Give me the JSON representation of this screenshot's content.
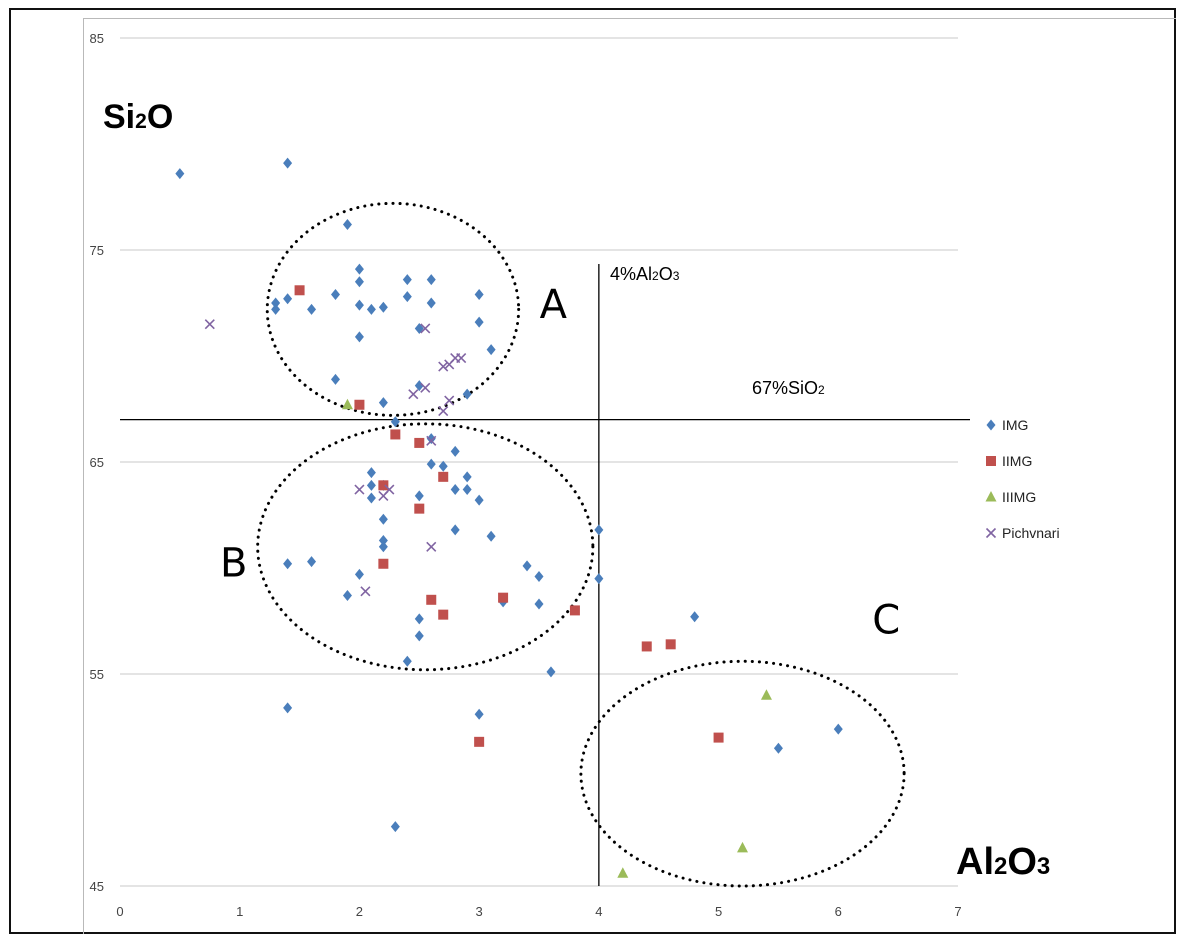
{
  "chart_data": {
    "type": "scatter",
    "xlim": [
      0,
      7
    ],
    "ylim": [
      45,
      85
    ],
    "x_ticks": [
      "0",
      "1",
      "2",
      "3",
      "4",
      "5",
      "6",
      "7"
    ],
    "y_ticks": [
      "45",
      "55",
      "65",
      "75",
      "85"
    ],
    "grid": "horizontal",
    "legend_position": "right",
    "y_axis_label": {
      "main": "Si",
      "sub": "2",
      "tail": "O"
    },
    "x_axis_label": {
      "a": "Al",
      "sub1": "2",
      "b": "O",
      "sub2": "3"
    },
    "reference_lines": {
      "vertical": {
        "x": 4,
        "label": {
          "a": "4%Al",
          "sub1": "2",
          "b": "O",
          "sub2": "3"
        }
      },
      "horizontal": {
        "y": 67,
        "label": {
          "a": "67%SiO",
          "sub": "2"
        }
      }
    },
    "regions": [
      {
        "label": "A",
        "cx": 2.28,
        "cy": 72.2,
        "rx": 1.05,
        "ry": 5.0
      },
      {
        "label": "B",
        "cx": 2.55,
        "cy": 61.0,
        "rx": 1.4,
        "ry": 5.8
      },
      {
        "label": "C",
        "cx": 5.2,
        "cy": 50.3,
        "rx": 1.35,
        "ry": 5.3
      }
    ],
    "region_label_positions": [
      {
        "label": "A",
        "x": 3.62,
        "y": 71.8
      },
      {
        "label": "B",
        "x": 0.95,
        "y": 59.6
      },
      {
        "label": "C",
        "x": 6.4,
        "y": 56.9
      }
    ],
    "series": [
      {
        "name": "IMG",
        "marker": "diamond",
        "color": "#4a7ebb",
        "points": [
          [
            0.5,
            78.6
          ],
          [
            1.4,
            79.1
          ],
          [
            1.9,
            76.2
          ],
          [
            2.0,
            74.1
          ],
          [
            2.0,
            73.5
          ],
          [
            2.4,
            73.6
          ],
          [
            2.6,
            73.6
          ],
          [
            1.3,
            72.5
          ],
          [
            1.4,
            72.7
          ],
          [
            1.3,
            72.2
          ],
          [
            1.6,
            72.2
          ],
          [
            1.8,
            72.9
          ],
          [
            2.0,
            72.4
          ],
          [
            2.1,
            72.2
          ],
          [
            2.2,
            72.3
          ],
          [
            2.4,
            72.8
          ],
          [
            2.6,
            72.5
          ],
          [
            3.0,
            72.9
          ],
          [
            2.5,
            71.3
          ],
          [
            3.0,
            71.6
          ],
          [
            2.0,
            70.9
          ],
          [
            3.1,
            70.3
          ],
          [
            1.8,
            68.9
          ],
          [
            2.5,
            68.6
          ],
          [
            2.9,
            68.2
          ],
          [
            2.2,
            67.8
          ],
          [
            2.3,
            66.9
          ],
          [
            2.6,
            66.1
          ],
          [
            2.8,
            65.5
          ],
          [
            2.6,
            64.9
          ],
          [
            2.7,
            64.8
          ],
          [
            2.9,
            64.3
          ],
          [
            2.1,
            64.5
          ],
          [
            2.1,
            63.9
          ],
          [
            2.2,
            63.9
          ],
          [
            2.1,
            63.3
          ],
          [
            2.5,
            63.4
          ],
          [
            2.8,
            63.7
          ],
          [
            2.9,
            63.7
          ],
          [
            3.0,
            63.2
          ],
          [
            2.2,
            62.3
          ],
          [
            2.8,
            61.8
          ],
          [
            2.2,
            61.3
          ],
          [
            3.1,
            61.5
          ],
          [
            4.0,
            61.8
          ],
          [
            1.4,
            60.2
          ],
          [
            1.6,
            60.3
          ],
          [
            2.0,
            59.7
          ],
          [
            2.2,
            61.0
          ],
          [
            3.4,
            60.1
          ],
          [
            3.5,
            59.6
          ],
          [
            4.0,
            59.5
          ],
          [
            1.9,
            58.7
          ],
          [
            3.2,
            58.4
          ],
          [
            3.5,
            58.3
          ],
          [
            2.5,
            57.6
          ],
          [
            2.5,
            56.8
          ],
          [
            2.4,
            55.6
          ],
          [
            3.6,
            55.1
          ],
          [
            4.8,
            57.7
          ],
          [
            1.4,
            53.4
          ],
          [
            3.0,
            53.1
          ],
          [
            2.3,
            47.8
          ],
          [
            5.5,
            51.5
          ],
          [
            6.0,
            52.4
          ]
        ]
      },
      {
        "name": "IIMG",
        "marker": "square",
        "color": "#c0504d",
        "points": [
          [
            1.5,
            73.1
          ],
          [
            2.0,
            67.7
          ],
          [
            2.3,
            66.3
          ],
          [
            2.5,
            65.9
          ],
          [
            2.2,
            63.9
          ],
          [
            2.7,
            64.3
          ],
          [
            2.5,
            62.8
          ],
          [
            2.2,
            60.2
          ],
          [
            2.6,
            58.5
          ],
          [
            2.7,
            57.8
          ],
          [
            3.2,
            58.6
          ],
          [
            3.8,
            58.0
          ],
          [
            3.0,
            51.8
          ],
          [
            4.4,
            56.3
          ],
          [
            4.6,
            56.4
          ],
          [
            5.0,
            52.0
          ]
        ]
      },
      {
        "name": "IIIMG",
        "marker": "triangle",
        "color": "#9bbb59",
        "points": [
          [
            1.9,
            67.7
          ],
          [
            5.4,
            54.0
          ],
          [
            5.2,
            46.8
          ],
          [
            4.2,
            45.6
          ]
        ]
      },
      {
        "name": "Pichvnari",
        "marker": "x",
        "color": "#8064a2",
        "points": [
          [
            0.75,
            71.5
          ],
          [
            2.55,
            71.3
          ],
          [
            2.7,
            69.5
          ],
          [
            2.75,
            69.6
          ],
          [
            2.8,
            69.9
          ],
          [
            2.85,
            69.9
          ],
          [
            2.45,
            68.2
          ],
          [
            2.55,
            68.5
          ],
          [
            2.75,
            67.9
          ],
          [
            2.7,
            67.4
          ],
          [
            2.6,
            66.0
          ],
          [
            2.0,
            63.7
          ],
          [
            2.2,
            63.4
          ],
          [
            2.25,
            63.7
          ],
          [
            2.6,
            61.0
          ],
          [
            2.05,
            58.9
          ]
        ]
      }
    ]
  }
}
